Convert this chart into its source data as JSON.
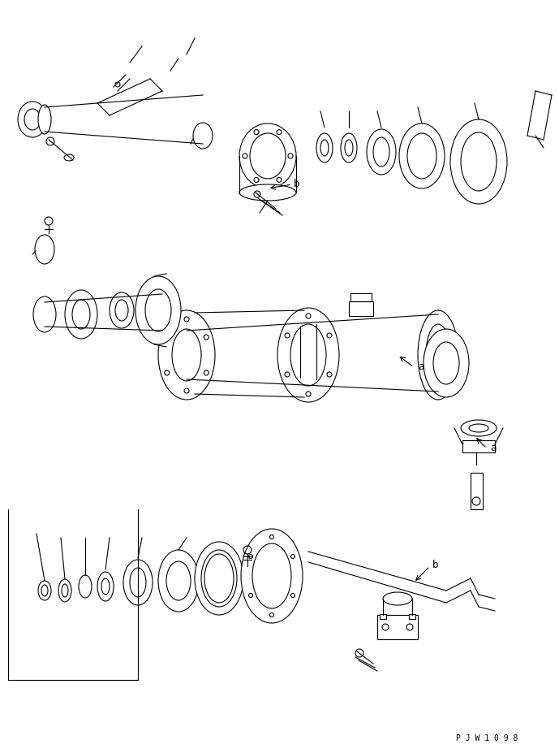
{
  "bg_color": "#ffffff",
  "line_color": "#000000",
  "fig_width": 6.89,
  "fig_height": 9.27,
  "dpi": 100,
  "watermark": "P J W 1 0 9 8",
  "label_a": "a",
  "label_b": "b"
}
